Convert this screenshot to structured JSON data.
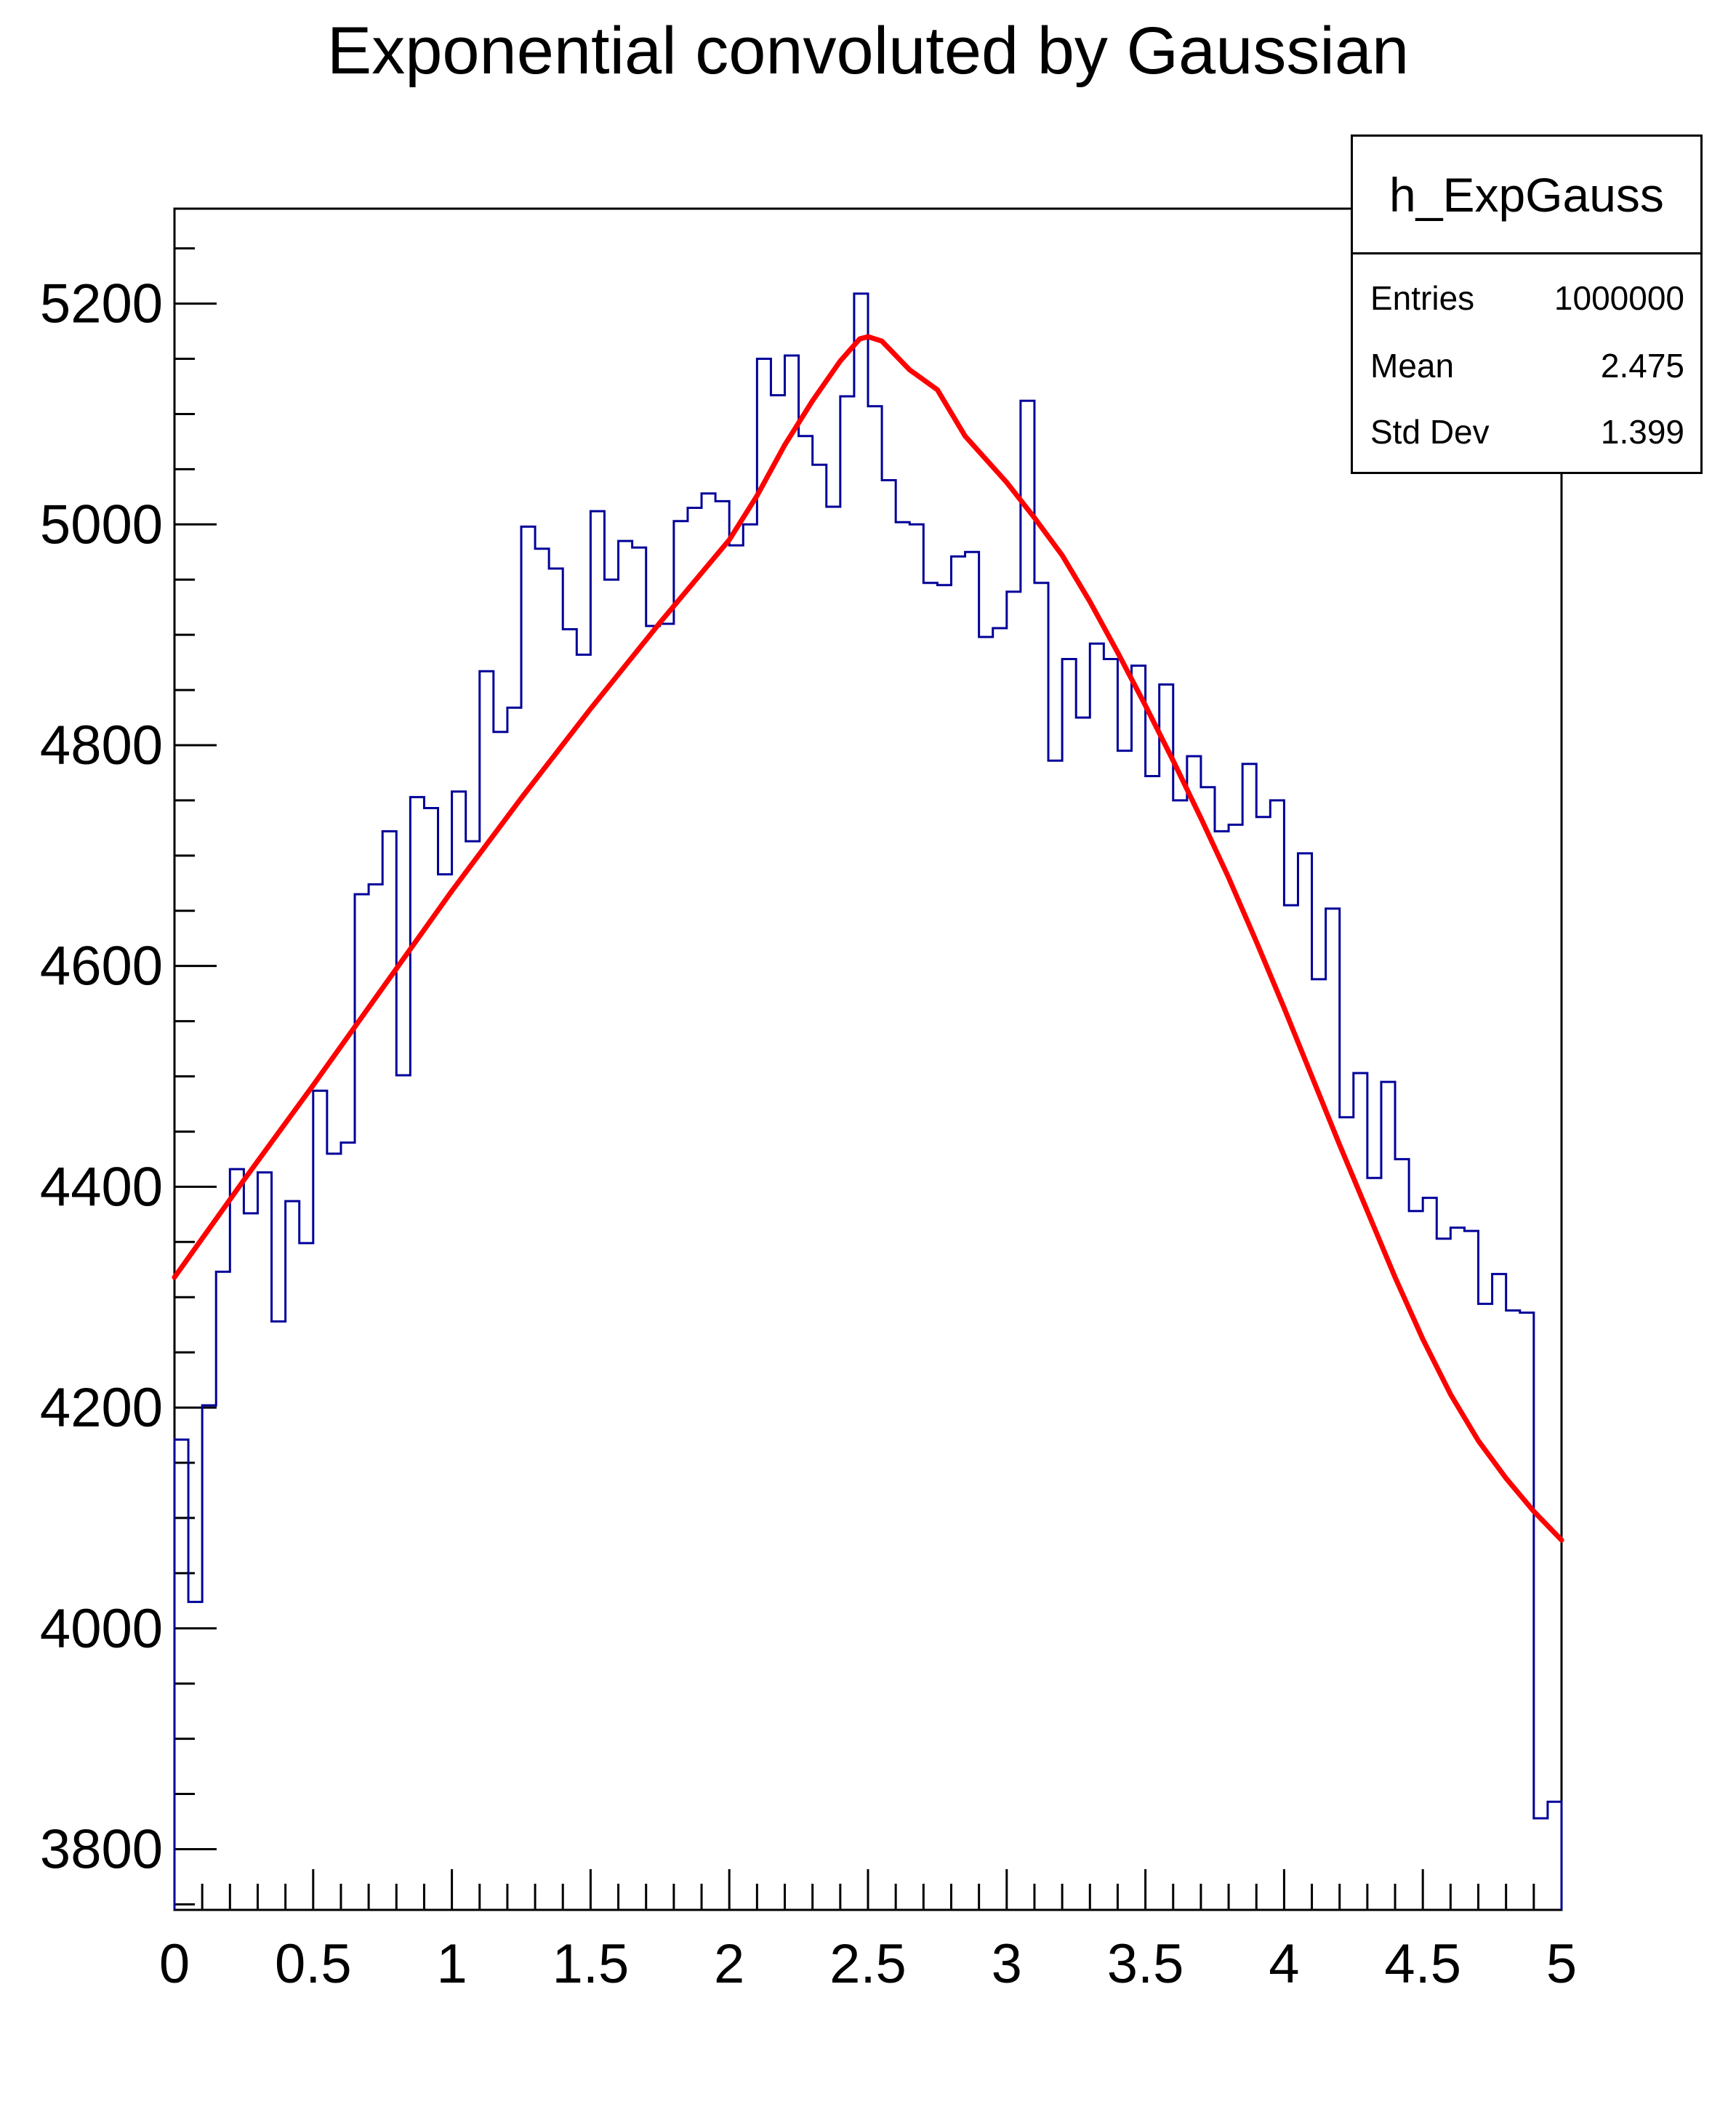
{
  "title": "Exponential convoluted by Gaussian",
  "stats_box": {
    "name": "h_ExpGauss",
    "rows": [
      {
        "label": "Entries",
        "value": "1000000"
      },
      {
        "label": "Mean",
        "value": "2.475"
      },
      {
        "label": "Std Dev",
        "value": "1.399"
      }
    ]
  },
  "colors": {
    "histogram": "#000099",
    "fit_curve": "#ff0000",
    "frame": "#000000",
    "text": "#000000",
    "background": "#ffffff"
  },
  "chart_data": {
    "type": "bar",
    "subtype": "step-histogram-with-fit",
    "title": "Exponential convoluted by Gaussian",
    "xlabel": "",
    "ylabel": "",
    "xlim": [
      0,
      5
    ],
    "ylim": [
      3745,
      5286
    ],
    "grid": false,
    "legend": false,
    "bin_start": 0,
    "bin_width": 0.05,
    "x_major_ticks": [
      0,
      0.5,
      1,
      1.5,
      2,
      2.5,
      3,
      3.5,
      4,
      4.5,
      5
    ],
    "x_major_tick_labels": [
      "0",
      "0.5",
      "1",
      "1.5",
      "2",
      "2.5",
      "3",
      "3.5",
      "4",
      "4.5",
      "5"
    ],
    "x_minor_tick_step": 0.1,
    "y_major_ticks": [
      3800,
      4000,
      4200,
      4400,
      4600,
      4800,
      5000,
      5200
    ],
    "y_major_tick_labels": [
      "3800",
      "4000",
      "4200",
      "4400",
      "4600",
      "4800",
      "5000",
      "5200"
    ],
    "y_minor_tick_step": 50,
    "series": [
      {
        "name": "h_ExpGauss",
        "style": "step",
        "color": "#000099",
        "values": [
          4171,
          4024,
          4202,
          4323,
          4416,
          4376,
          4413,
          4278,
          4387,
          4349,
          4487,
          4430,
          4440,
          4665,
          4674,
          4722,
          4501,
          4753,
          4743,
          4683,
          4758,
          4713,
          4867,
          4812,
          4834,
          4998,
          4978,
          4960,
          4905,
          4882,
          5012,
          4950,
          4985,
          4979,
          4908,
          4910,
          5003,
          5015,
          5028,
          5021,
          4981,
          5000,
          5150,
          5117,
          5153,
          5080,
          5054,
          5016,
          5116,
          5209,
          5107,
          5040,
          5002,
          5000,
          4947,
          4945,
          4971,
          4975,
          4898,
          4906,
          4939,
          5112,
          4947,
          4786,
          4878,
          4825,
          4892,
          4878,
          4795,
          4872,
          4772,
          4855,
          4750,
          4790,
          4762,
          4722,
          4728,
          4783,
          4735,
          4750,
          4655,
          4702,
          4588,
          4652,
          4463,
          4503,
          4408,
          4495,
          4425,
          4378,
          4390,
          4353,
          4363,
          4360,
          4294,
          4321,
          4288,
          4286,
          3828,
          3843
        ]
      },
      {
        "name": "fit",
        "style": "line",
        "color": "#ff0000",
        "points": [
          [
            0.0,
            4318
          ],
          [
            0.25,
            4406
          ],
          [
            0.5,
            4492
          ],
          [
            0.75,
            4580
          ],
          [
            1.0,
            4668
          ],
          [
            1.25,
            4752
          ],
          [
            1.5,
            4833
          ],
          [
            1.75,
            4911
          ],
          [
            2.0,
            4986
          ],
          [
            2.1,
            5026
          ],
          [
            2.2,
            5072
          ],
          [
            2.3,
            5112
          ],
          [
            2.4,
            5148
          ],
          [
            2.47,
            5168
          ],
          [
            2.5,
            5170
          ],
          [
            2.55,
            5166
          ],
          [
            2.65,
            5140
          ],
          [
            2.75,
            5122
          ],
          [
            2.85,
            5080
          ],
          [
            2.95,
            5052
          ],
          [
            3.0,
            5038
          ],
          [
            3.1,
            5006
          ],
          [
            3.2,
            4972
          ],
          [
            3.3,
            4930
          ],
          [
            3.4,
            4884
          ],
          [
            3.5,
            4836
          ],
          [
            3.6,
            4786
          ],
          [
            3.7,
            4734
          ],
          [
            3.8,
            4680
          ],
          [
            3.9,
            4622
          ],
          [
            4.0,
            4562
          ],
          [
            4.1,
            4500
          ],
          [
            4.2,
            4438
          ],
          [
            4.3,
            4378
          ],
          [
            4.4,
            4318
          ],
          [
            4.5,
            4262
          ],
          [
            4.6,
            4212
          ],
          [
            4.7,
            4170
          ],
          [
            4.8,
            4136
          ],
          [
            4.9,
            4106
          ],
          [
            5.0,
            4080
          ]
        ]
      }
    ]
  }
}
